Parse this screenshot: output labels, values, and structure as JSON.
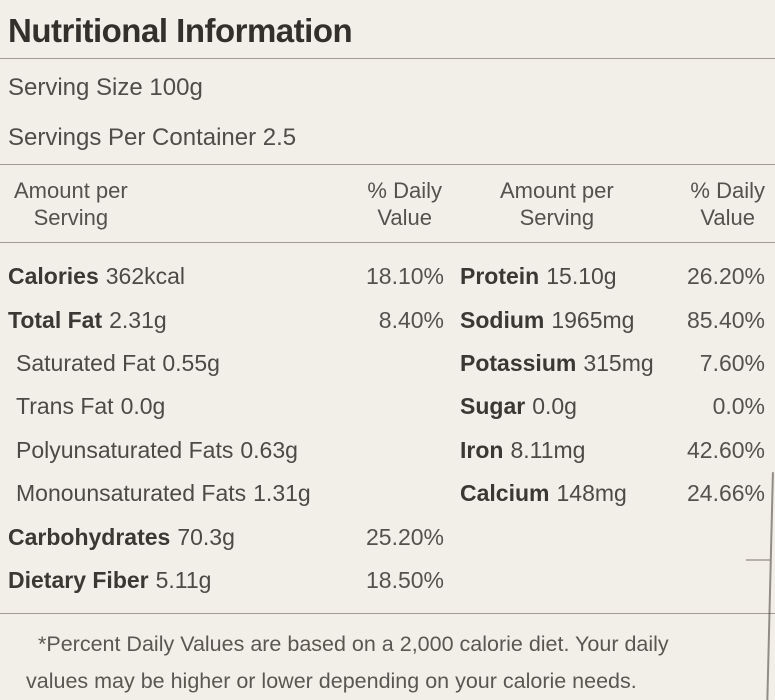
{
  "title": "Nutritional Information",
  "serving": {
    "size": "Serving Size 100g",
    "per_container": "Servings Per Container 2.5"
  },
  "headers": {
    "amount_line1": "Amount per",
    "amount_line2": "Serving",
    "dv_line1": "% Daily",
    "dv_line2": "Value"
  },
  "rows": {
    "left": [
      {
        "label": "Calories",
        "value": "362kcal",
        "dv": "18.10%"
      },
      {
        "label": "Total Fat",
        "value": "2.31g",
        "dv": "8.40%"
      },
      {
        "label": "Saturated Fat",
        "value": "0.55g",
        "dv": ""
      },
      {
        "label": "Trans Fat",
        "value": "0.0g",
        "dv": ""
      },
      {
        "label": "Polyunsaturated Fats",
        "value": "0.63g",
        "dv": ""
      },
      {
        "label": "Monounsaturated Fats",
        "value": "1.31g",
        "dv": ""
      },
      {
        "label": "Carbohydrates",
        "value": "70.3g",
        "dv": "25.20%"
      },
      {
        "label": "Dietary Fiber",
        "value": "5.11g",
        "dv": "18.50%"
      }
    ],
    "right": [
      {
        "label": "Protein",
        "value": "15.10g",
        "dv": "26.20%"
      },
      {
        "label": "Sodium",
        "value": "1965mg",
        "dv": "85.40%"
      },
      {
        "label": "Potassium",
        "value": "315mg",
        "dv": "7.60%"
      },
      {
        "label": "Sugar",
        "value": "0.0g",
        "dv": "0.0%"
      },
      {
        "label": "Iron",
        "value": "8.11mg",
        "dv": "42.60%"
      },
      {
        "label": "Calcium",
        "value": "148mg",
        "dv": "24.66%"
      }
    ]
  },
  "footnote": {
    "line1": "*Percent Daily Values are based on a 2,000 calorie diet. Your daily",
    "line2": "values may be higher or lower depending on your calorie needs."
  },
  "colors": {
    "background": "#f2efe9",
    "text": "#4d4a45",
    "bold_text": "#3b3834",
    "rule": "#a09a91"
  }
}
